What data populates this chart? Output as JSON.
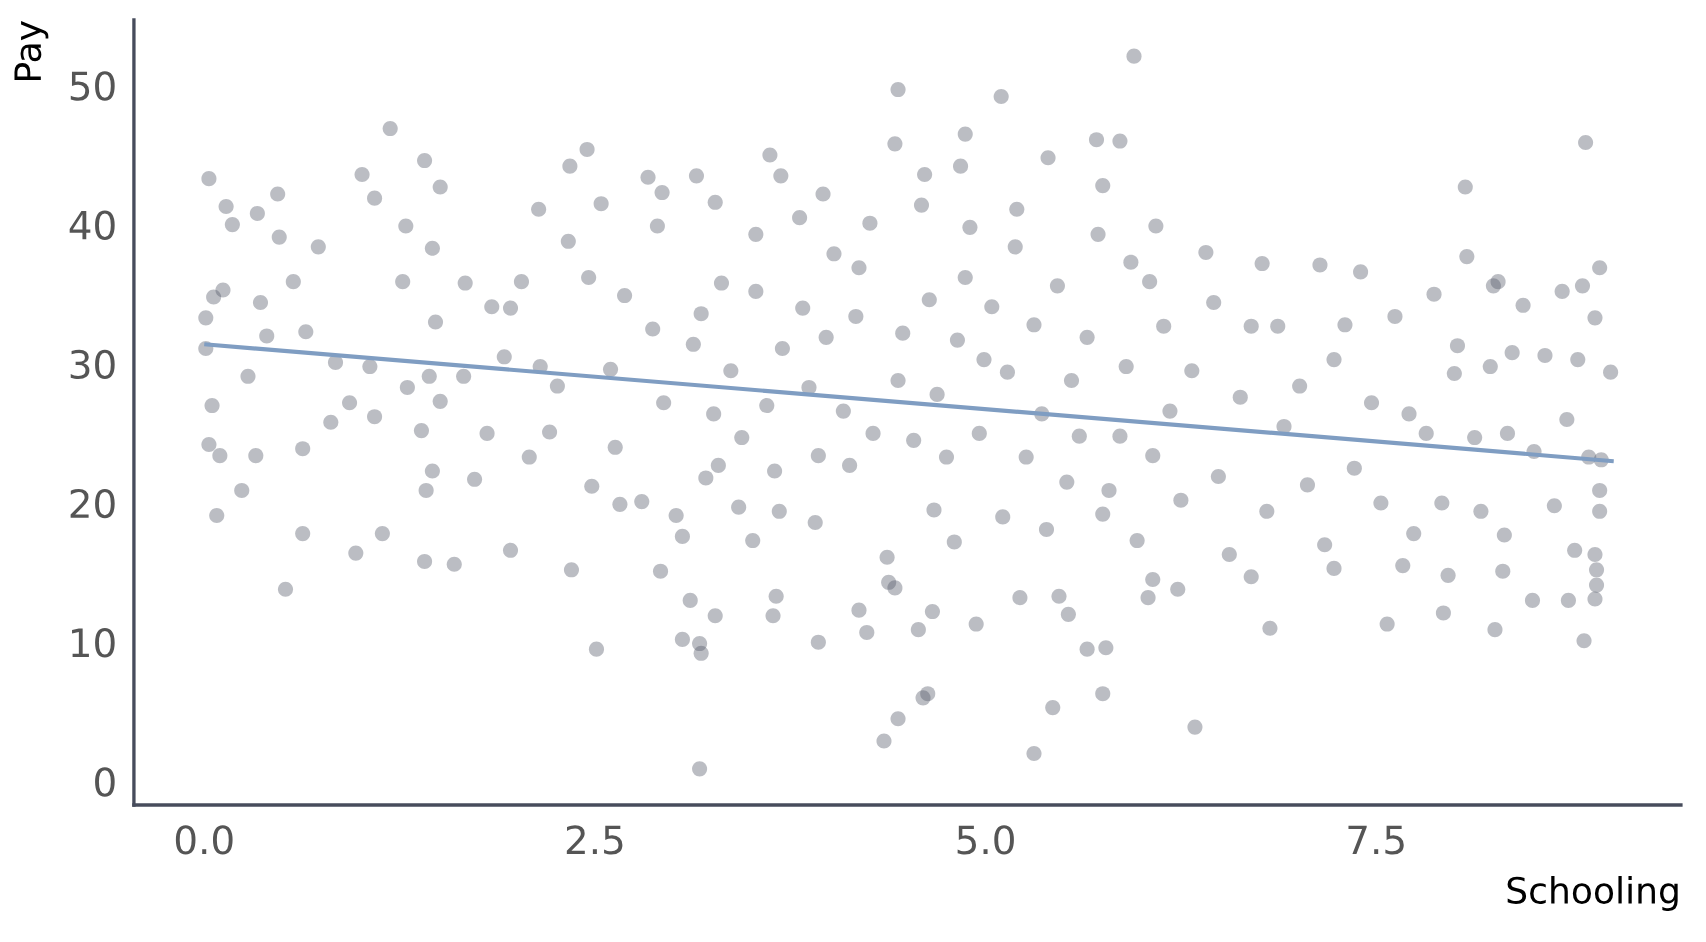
{
  "chart_data": {
    "type": "scatter",
    "xlabel": "Schooling",
    "ylabel": "Pay",
    "xlim": [
      -0.45,
      9.45
    ],
    "ylim": [
      -1.7,
      54.7
    ],
    "xticks": [
      {
        "value": 0,
        "label": "0.0"
      },
      {
        "value": 2.5,
        "label": "2.5"
      },
      {
        "value": 5,
        "label": "5.0"
      },
      {
        "value": 7.5,
        "label": "7.5"
      }
    ],
    "yticks": [
      0,
      10,
      20,
      30,
      40,
      50
    ],
    "series": [
      {
        "color": "#555a6a",
        "marker": "circle",
        "x": [
          5.95,
          4.44,
          5.1,
          1.19,
          4.87,
          5.71,
          5.86,
          8.84,
          4.42,
          2.45,
          3.62,
          1.41,
          5.4,
          2.34,
          4.84,
          4.61,
          0.03,
          1.01,
          3.15,
          3.69,
          2.84,
          1.51,
          5.75,
          8.07,
          1.09,
          0.47,
          0.14,
          2.93,
          3.27,
          2.14,
          0.34,
          3.96,
          1.29,
          0.18,
          6.09,
          5.2,
          8.93,
          8.25,
          8.0,
          3.17,
          5.31,
          4.35,
          6.34,
          4.44,
          5.43,
          4.6,
          4.63,
          5.75,
          5.77,
          5.65,
          2.51,
          3.18,
          3.17,
          3.93,
          8.83,
          4.24,
          3.06,
          4.57,
          4.94,
          6.82,
          7.57,
          7.93,
          8.26,
          0.52,
          8.32,
          0.63,
          1.14,
          1.6,
          0.97,
          1.41,
          1.96,
          2.35,
          2.92,
          0.08,
          0.24,
          8.9,
          8.91,
          8.91,
          8.9,
          8.73,
          8.5,
          8.31,
          7.96,
          7.67,
          7.23,
          6.7,
          6.07,
          6.04,
          6.23,
          5.53,
          5.47,
          5.22,
          4.66,
          4.19,
          4.42,
          3.64,
          3.66,
          3.27,
          3.11,
          0.01,
          0.01,
          0.05,
          0.03,
          0.1,
          0.06,
          0.12,
          0.28,
          0.4,
          0.36,
          0.33,
          0.48,
          0.57,
          0.65,
          0.73,
          0.63,
          0.81,
          0.84,
          0.93,
          1.06,
          1.09,
          1.27,
          1.3,
          1.39,
          1.46,
          1.44,
          1.51,
          1.48,
          1.46,
          1.42,
          1.67,
          1.66,
          1.73,
          1.81,
          1.84,
          1.92,
          1.96,
          2.03,
          2.08,
          2.15,
          2.21,
          2.26,
          2.33,
          2.46,
          2.54,
          2.48,
          2.6,
          2.63,
          2.66,
          2.69,
          2.8,
          2.87,
          2.9,
          2.94,
          3.02,
          3.06,
          3.13,
          3.18,
          3.21,
          3.26,
          3.29,
          3.31,
          3.37,
          3.42,
          3.44,
          3.51,
          3.53,
          3.53,
          3.6,
          3.65,
          3.68,
          3.7,
          3.81,
          3.83,
          3.87,
          3.91,
          3.93,
          3.98,
          4.03,
          4.09,
          4.13,
          4.17,
          4.19,
          4.26,
          4.28,
          4.37,
          4.38,
          4.44,
          4.47,
          4.54,
          4.59,
          4.64,
          4.67,
          4.69,
          4.75,
          4.8,
          4.82,
          4.87,
          4.9,
          4.96,
          4.99,
          5.04,
          5.11,
          5.14,
          5.19,
          5.26,
          5.31,
          5.36,
          5.39,
          5.46,
          5.52,
          5.55,
          5.6,
          5.65,
          5.72,
          5.75,
          5.79,
          5.86,
          5.9,
          5.93,
          5.97,
          6.05,
          6.07,
          6.14,
          6.18,
          6.25,
          6.32,
          6.41,
          6.46,
          6.49,
          6.56,
          6.63,
          6.7,
          6.77,
          6.8,
          6.87,
          6.91,
          7.01,
          7.06,
          7.14,
          7.17,
          7.23,
          7.3,
          7.36,
          7.4,
          7.47,
          7.53,
          7.62,
          7.71,
          7.74,
          7.82,
          7.87,
          7.92,
          8.02,
          8.08,
          8.13,
          8.17,
          8.23,
          8.28,
          8.34,
          8.37,
          8.44,
          8.51,
          8.58,
          8.64,
          8.69,
          8.72,
          8.77,
          8.79,
          8.82,
          8.86,
          8.9,
          8.93,
          8.93,
          9.0,
          8.94
        ],
        "values": [
          52.1,
          49.7,
          49.2,
          46.9,
          46.5,
          46.1,
          46.0,
          45.9,
          45.8,
          45.4,
          45.0,
          44.6,
          44.8,
          44.2,
          44.2,
          43.6,
          43.3,
          43.6,
          43.5,
          43.5,
          43.4,
          42.7,
          42.8,
          42.7,
          41.9,
          42.2,
          41.3,
          42.3,
          41.6,
          41.1,
          40.8,
          42.2,
          39.9,
          40.0,
          39.9,
          41.1,
          36.9,
          35.6,
          29.3,
          0.9,
          2.0,
          2.9,
          3.9,
          4.5,
          5.3,
          6.0,
          6.3,
          6.3,
          9.6,
          9.5,
          9.5,
          9.2,
          9.9,
          10.0,
          10.1,
          10.7,
          10.2,
          10.9,
          11.3,
          11.0,
          11.3,
          12.1,
          10.9,
          13.8,
          17.7,
          17.8,
          17.8,
          15.6,
          16.4,
          15.8,
          16.6,
          15.2,
          15.1,
          19.1,
          20.9,
          16.3,
          15.2,
          14.1,
          13.1,
          13.0,
          13.0,
          15.1,
          14.8,
          15.5,
          15.3,
          14.7,
          14.5,
          13.2,
          13.8,
          12.0,
          13.3,
          13.2,
          12.2,
          12.3,
          13.9,
          11.9,
          13.3,
          11.9,
          13.0,
          31.1,
          33.3,
          27.0,
          24.2,
          23.4,
          34.8,
          35.3,
          29.1,
          32.0,
          34.4,
          23.4,
          39.1,
          35.9,
          32.3,
          38.4,
          23.9,
          25.8,
          30.1,
          27.2,
          29.8,
          26.2,
          35.9,
          28.3,
          25.2,
          38.3,
          29.1,
          27.3,
          33.0,
          22.3,
          20.9,
          35.8,
          29.1,
          21.7,
          25.0,
          34.1,
          30.5,
          34.0,
          35.9,
          23.3,
          29.8,
          25.1,
          28.4,
          38.8,
          36.2,
          41.5,
          21.2,
          29.6,
          24.0,
          19.9,
          34.9,
          20.1,
          32.5,
          39.9,
          27.2,
          19.1,
          17.6,
          31.4,
          33.6,
          21.8,
          26.4,
          22.7,
          35.8,
          29.5,
          19.7,
          24.7,
          17.3,
          35.2,
          39.3,
          27.0,
          22.3,
          19.4,
          31.1,
          40.5,
          34.0,
          28.3,
          18.6,
          23.4,
          31.9,
          37.9,
          26.6,
          22.7,
          33.4,
          36.9,
          40.1,
          25.0,
          16.1,
          14.3,
          28.8,
          32.2,
          24.5,
          41.4,
          34.6,
          19.5,
          27.8,
          23.3,
          17.2,
          31.7,
          36.2,
          39.8,
          25.0,
          30.3,
          34.1,
          19.0,
          29.4,
          38.4,
          23.3,
          32.8,
          26.4,
          18.1,
          35.6,
          21.5,
          28.8,
          24.8,
          31.9,
          39.3,
          19.2,
          20.9,
          24.8,
          29.8,
          37.3,
          17.3,
          35.9,
          23.4,
          32.7,
          26.6,
          20.2,
          29.5,
          38.0,
          34.4,
          21.9,
          16.3,
          27.6,
          32.7,
          37.2,
          19.4,
          32.7,
          25.5,
          28.4,
          21.3,
          37.1,
          17.0,
          30.3,
          32.8,
          22.5,
          36.6,
          27.2,
          20.0,
          33.4,
          26.4,
          17.8,
          25.0,
          35.0,
          20.0,
          31.3,
          37.7,
          24.7,
          19.4,
          29.8,
          35.9,
          25.0,
          30.8,
          34.2,
          23.7,
          30.6,
          19.8,
          35.2,
          26.0,
          16.6,
          30.3,
          35.6,
          23.3,
          33.3,
          20.9,
          19.4,
          29.4,
          23.1
        ]
      },
      {
        "type": "line",
        "color": "#7f9dc2",
        "x": [
          0,
          9.02
        ],
        "values": [
          31.4,
          23.0
        ]
      }
    ]
  }
}
